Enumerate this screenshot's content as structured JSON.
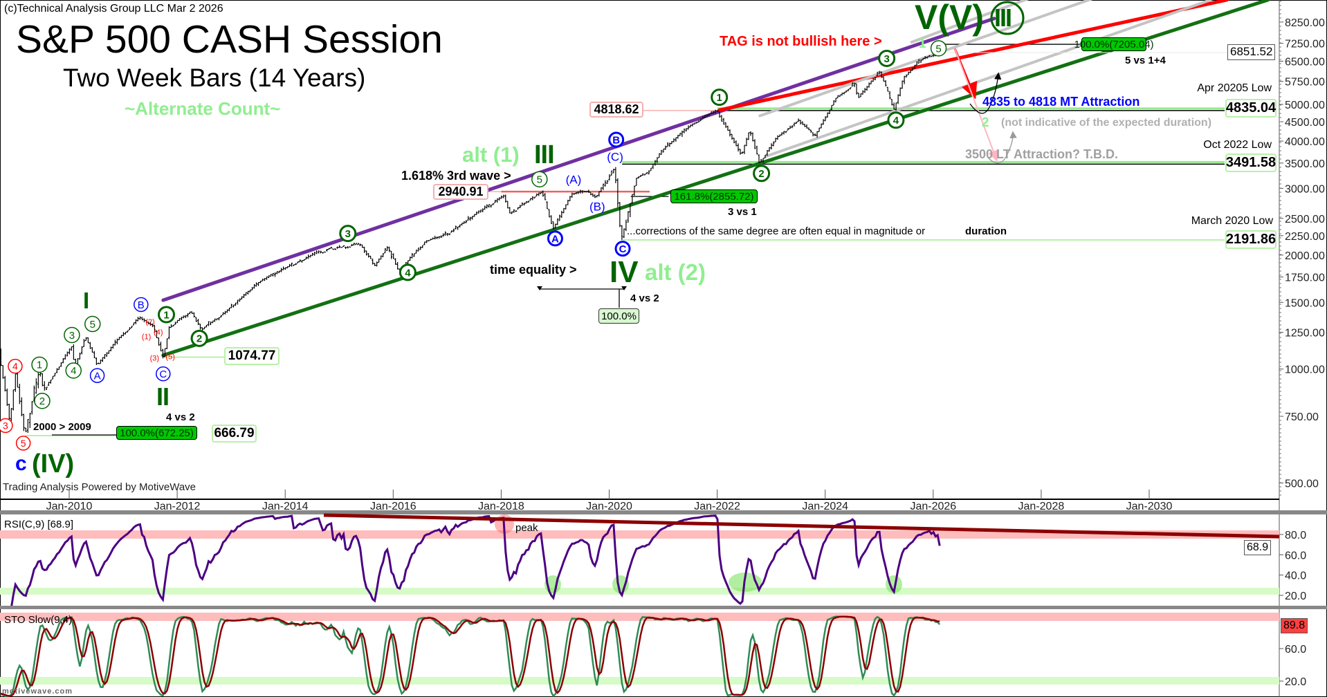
{
  "header": {
    "copyright": "(c)Technical Analysis Group LLC Mar 2 2026",
    "title": "S&P 500 CASH Session",
    "subtitle": "Two Week Bars (14 Years)",
    "count_label": "~Alternate Count~",
    "powered_by": "Trading Analysis Powered by MotiveWave",
    "watermark": "motivewave.com"
  },
  "annotations": {
    "tag_note": "TAG is not bullish here >",
    "top_wave": "V(V)",
    "top_wave_circled": "III",
    "fib_7205": "100.0%(7205.04)",
    "five_vs": "5 vs 1+4",
    "current_price": "6851.52",
    "apr_low_label": "Apr 20205 Low",
    "apr_low_value": "4835.04",
    "mt_attraction": "4835 to 4818 MT Attraction",
    "level_4818": "4818.62",
    "alt_two": "2",
    "duration_note": "(not indicative of the expected duration)",
    "oct_low_label": "Oct 2022 Low",
    "oct_low_value": "3491.58",
    "lt_attraction": "3500 LT Attraction? T.B.D.",
    "mar_low_label": "March 2020 Low",
    "mar_low_value": "2191.86",
    "corrections_note": "...corrections of the same degree are often equal in magnitude or",
    "duration_word": "duration",
    "fib_2855": "161.8%(2855.72)",
    "three_vs": "3 vs 1",
    "alt1": "alt (1)",
    "wave_III": "III",
    "third_wave_note": "1.618% 3rd wave >",
    "level_2940": "2940.91",
    "time_equality": "time equality >",
    "wave_IV": "IV",
    "alt2": "alt (2)",
    "four_vs_two_a": "4 vs 2",
    "time_pct": "100.0%",
    "wave_I": "I",
    "wave_II": "II",
    "four_vs_two_b": "4 vs 2",
    "range_note": "2000 > 2009",
    "fib_672": "100.0%(672.25)",
    "level_666": "666.79",
    "level_1074": "1074.77",
    "wave_c": "c",
    "wave_IV_paren": "(IV)"
  },
  "indicators": {
    "rsi_label": "RSI(C,9) [68.9]",
    "rsi_value": "68.9",
    "rsi_peak": "peak",
    "sto_label": "STO Slow(9,4)",
    "sto_value": "89.8",
    "rsi_ticks": [
      "80.0",
      "60.0",
      "40.0",
      "20.0"
    ],
    "sto_ticks": [
      "60.0",
      "20.0"
    ]
  },
  "colors": {
    "purple": "#7030a0",
    "channel_green": "#137013",
    "red": "#ff0000",
    "gray": "#c4c4c4",
    "wave_green": "#006400",
    "light_green": "#90ee90",
    "blue": "#0000ff",
    "rsi": "#4b0082",
    "sto_k": "#2e8b57",
    "sto_d": "#8b0000"
  },
  "chart_data": {
    "type": "ohlc",
    "title": "S&P 500 CASH Session",
    "scale": "log",
    "ylim": [
      470,
      9600
    ],
    "xlim": [
      2008.6,
      2032.0
    ],
    "yticks": [
      8250,
      7250,
      6500,
      5750,
      5000,
      4500,
      4000,
      3500,
      3000,
      2500,
      2250,
      2000,
      1750,
      1500,
      1250,
      1000,
      750,
      500
    ],
    "ytick_labels": [
      "8250.00",
      "7250.00",
      "6500.00",
      "5750.00",
      "5000.00",
      "4500.00",
      "4000.00",
      "3500.00",
      "3000.00",
      "2500.00",
      "2250.00",
      "2000.00",
      "1750.00",
      "1500.00",
      "1250.00",
      "1000.00",
      "750.00",
      "500.00"
    ],
    "xticks": [
      2010,
      2012,
      2014,
      2016,
      2018,
      2020,
      2022,
      2024,
      2026,
      2028,
      2030
    ],
    "xtick_labels": [
      "Jan-2010",
      "Jan-2012",
      "Jan-2014",
      "Jan-2016",
      "Jan-2018",
      "Jan-2020",
      "Jan-2022",
      "Jan-2024",
      "Jan-2026",
      "Jan-2028",
      "Jan-2030"
    ],
    "bar_interval_weeks": 2,
    "pivots": [
      [
        2008.62,
        1280
      ],
      [
        2008.8,
        900
      ],
      [
        2008.9,
        720
      ],
      [
        2009.0,
        980
      ],
      [
        2009.18,
        666.79
      ],
      [
        2009.45,
        1000
      ],
      [
        2009.52,
        880
      ],
      [
        2010.05,
        1150
      ],
      [
        2010.1,
        1010
      ],
      [
        2010.3,
        1220
      ],
      [
        2010.52,
        1020
      ],
      [
        2010.9,
        1200
      ],
      [
        2011.3,
        1370
      ],
      [
        2011.55,
        1300
      ],
      [
        2011.74,
        1074.77
      ],
      [
        2011.85,
        1290
      ],
      [
        2012.25,
        1420
      ],
      [
        2012.45,
        1270
      ],
      [
        2012.9,
        1420
      ],
      [
        2013.5,
        1690
      ],
      [
        2014.0,
        1850
      ],
      [
        2014.8,
        2080
      ],
      [
        2015.4,
        2130
      ],
      [
        2015.65,
        1870
      ],
      [
        2015.9,
        2100
      ],
      [
        2016.1,
        1810
      ],
      [
        2016.6,
        2180
      ],
      [
        2017.0,
        2280
      ],
      [
        2018.05,
        2872
      ],
      [
        2018.15,
        2580
      ],
      [
        2018.75,
        2940.91
      ],
      [
        2018.97,
        2346
      ],
      [
        2019.3,
        2900
      ],
      [
        2019.6,
        2950
      ],
      [
        2019.75,
        2840
      ],
      [
        2020.1,
        3390
      ],
      [
        2020.22,
        2191.86
      ],
      [
        2020.5,
        3200
      ],
      [
        2020.7,
        3300
      ],
      [
        2021.0,
        3800
      ],
      [
        2021.5,
        4400
      ],
      [
        2022.0,
        4818.62
      ],
      [
        2022.45,
        3670
      ],
      [
        2022.6,
        4300
      ],
      [
        2022.78,
        3491.58
      ],
      [
        2023.1,
        4100
      ],
      [
        2023.5,
        4550
      ],
      [
        2023.8,
        4120
      ],
      [
        2024.2,
        5200
      ],
      [
        2024.55,
        5670
      ],
      [
        2024.6,
        5180
      ],
      [
        2025.0,
        6100
      ],
      [
        2025.27,
        4835.04
      ],
      [
        2025.45,
        5900
      ],
      [
        2025.8,
        6600
      ],
      [
        2026.15,
        6851.52
      ]
    ],
    "last_price": 6851.52,
    "trendlines": [
      {
        "name": "upper-channel",
        "color": "purple",
        "from": [
          2011.74,
          1520
        ],
        "to": [
          2027.13,
          8430
        ]
      },
      {
        "name": "lower-channel",
        "color": "channel_green",
        "from": [
          2011.74,
          1087
        ],
        "to": [
          2032.2,
          9440
        ]
      },
      {
        "name": "resistance",
        "color": "red",
        "from": [
          2022.04,
          4830
        ],
        "to": [
          2031.44,
          9440
        ]
      },
      {
        "name": "parallel-1",
        "color": "gray",
        "from": [
          2022.9,
          3643
        ],
        "to": [
          2031.13,
          9430
        ]
      },
      {
        "name": "parallel-2",
        "color": "gray",
        "from": [
          2022.79,
          4664
        ],
        "to": [
          2031.0,
          12060
        ]
      },
      {
        "name": "parallel-3",
        "color": "gray",
        "from": [
          2025.6,
          7300
        ],
        "to": [
          2030.0,
          12500
        ]
      }
    ],
    "levels": [
      {
        "name": "level-4835",
        "price": 4835.04,
        "from": 2022.0,
        "style": "double"
      },
      {
        "name": "level-3491",
        "price": 3491.58,
        "from": 2020.24,
        "style": "double"
      },
      {
        "name": "level-2191",
        "price": 2191.86,
        "from": 2020.22,
        "style": "light"
      },
      {
        "name": "level-2940",
        "price": 2940.91,
        "from": 2018.0,
        "to": 2020.75,
        "style": "red"
      },
      {
        "name": "level-2855",
        "price": 2855.72,
        "from": 2020.4,
        "to": 2021.1,
        "style": "black"
      },
      {
        "name": "level-7205",
        "price": 7205.04,
        "from": 2026.1,
        "to": 2028.95,
        "style": "black"
      },
      {
        "name": "level-1074",
        "price": 1074.77,
        "from": 2011.74,
        "to": 2013.1,
        "style": "light"
      },
      {
        "name": "level-666",
        "price": 666.79,
        "from": 2009.18,
        "to": 2011.6,
        "style": "light"
      }
    ],
    "wave_labels": [
      {
        "t": "3",
        "s": "red",
        "x": 2008.82,
        "p": 709
      },
      {
        "t": "4",
        "s": "red",
        "x": 2009.0,
        "p": 1017
      },
      {
        "t": "5",
        "s": "red",
        "x": 2009.15,
        "p": 637
      },
      {
        "t": "1",
        "s": "green",
        "x": 2009.45,
        "p": 1027
      },
      {
        "t": "2",
        "s": "green",
        "x": 2009.5,
        "p": 824
      },
      {
        "t": "3",
        "s": "green",
        "x": 2010.05,
        "p": 1230
      },
      {
        "t": "4",
        "s": "green",
        "x": 2010.08,
        "p": 991
      },
      {
        "t": "5",
        "s": "green",
        "x": 2010.33,
        "p": 1315
      },
      {
        "t": "A",
        "s": "blue",
        "x": 2010.52,
        "p": 961
      },
      {
        "t": "B",
        "s": "blue",
        "x": 2011.33,
        "p": 1480
      },
      {
        "t": "C",
        "s": "blue",
        "x": 2011.74,
        "p": 971
      },
      {
        "t": "1",
        "s": "greenbold",
        "x": 2011.8,
        "p": 1392
      },
      {
        "t": "2",
        "s": "greenbold",
        "x": 2012.41,
        "p": 1205
      },
      {
        "t": "3",
        "s": "greenbold",
        "x": 2015.16,
        "p": 2280
      },
      {
        "t": "4",
        "s": "greenbold",
        "x": 2016.27,
        "p": 1800
      },
      {
        "t": "5",
        "s": "green",
        "x": 2018.71,
        "p": 3171
      },
      {
        "t": "A",
        "s": "bluebold",
        "x": 2019.0,
        "p": 2212
      },
      {
        "t": "B",
        "s": "bluebold",
        "x": 2020.13,
        "p": 4034
      },
      {
        "t": "C",
        "s": "bluebold",
        "x": 2020.25,
        "p": 2079
      },
      {
        "t": "(A)",
        "s": "bluetext",
        "x": 2019.34,
        "p": 3171
      },
      {
        "t": "(B)",
        "s": "bluetext",
        "x": 2019.78,
        "p": 2688
      },
      {
        "t": "(C)",
        "s": "bluetext",
        "x": 2020.11,
        "p": 3642
      },
      {
        "t": "(2)",
        "s": "redtext",
        "x": 2011.5,
        "p": 1428
      },
      {
        "t": "(4)",
        "s": "redtext",
        "x": 2011.65,
        "p": 1295
      },
      {
        "t": "(1)",
        "s": "redtext",
        "x": 2011.43,
        "p": 1218
      },
      {
        "t": "(3)",
        "s": "redtext",
        "x": 2011.58,
        "p": 1071
      },
      {
        "t": "(5)",
        "s": "redtext",
        "x": 2011.77,
        "p": 1044
      },
      {
        "t": "1",
        "s": "greenbold",
        "x": 2022.04,
        "p": 5222
      },
      {
        "t": "2",
        "s": "greenbold",
        "x": 2022.82,
        "p": 3286
      },
      {
        "t": "3",
        "s": "greenbold",
        "x": 2025.14,
        "p": 6613
      },
      {
        "t": "4",
        "s": "greenbold",
        "x": 2025.31,
        "p": 4543
      },
      {
        "t": "5",
        "s": "green",
        "x": 2026.1,
        "p": 7521
      },
      {
        "t": "1",
        "s": "lighttext",
        "x": 2025.8,
        "p": 7521
      }
    ],
    "rsi": {
      "period": 9,
      "overbought": 80,
      "oversold": 20,
      "last": 68.9
    },
    "stochastic": {
      "k": 9,
      "smooth": 4,
      "last": 89.8
    }
  }
}
